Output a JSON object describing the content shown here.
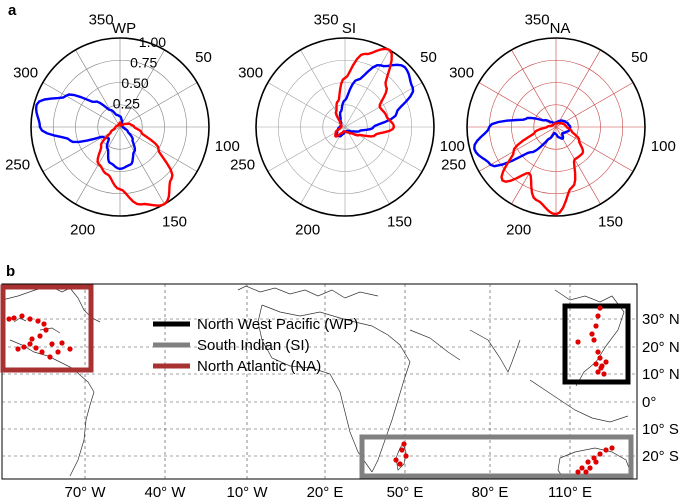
{
  "panels": {
    "a": "a",
    "b": "b"
  },
  "chart_data": [
    {
      "type": "polar",
      "panel": "a",
      "subplots": [
        {
          "title": "WP",
          "ring_color": "#808080",
          "angular_ticks": [
            "50",
            "100",
            "150",
            "200",
            "250",
            "300",
            "350"
          ],
          "radial_ticks": [
            "0.25",
            "0.50",
            "0.75",
            "1.00"
          ],
          "rlim": [
            0,
            1
          ],
          "series": [
            {
              "color": "#0000ff",
              "theta": [
                0,
                15,
                30,
                45,
                60,
                75,
                90,
                105,
                120,
                135,
                150,
                165,
                180,
                195,
                210,
                225,
                240,
                255,
                270,
                285,
                300,
                315,
                330,
                345
              ],
              "r": [
                0.12,
                0.08,
                0.04,
                0.03,
                0.03,
                0.03,
                0.03,
                0.05,
                0.1,
                0.2,
                0.32,
                0.44,
                0.47,
                0.42,
                0.28,
                0.18,
                0.22,
                0.58,
                0.9,
                0.97,
                0.7,
                0.4,
                0.22,
                0.14
              ]
            },
            {
              "color": "#ff0000",
              "theta": [
                0,
                15,
                30,
                45,
                60,
                75,
                90,
                105,
                120,
                135,
                150,
                165,
                180,
                195,
                210,
                225,
                240,
                255,
                270,
                285,
                300,
                315,
                330,
                345
              ],
              "r": [
                0.05,
                0.03,
                0.02,
                0.03,
                0.07,
                0.12,
                0.16,
                0.25,
                0.5,
                0.82,
                1.0,
                0.9,
                0.7,
                0.55,
                0.48,
                0.3,
                0.12,
                0.06,
                0.05,
                0.04,
                0.03,
                0.03,
                0.03,
                0.04
              ]
            }
          ]
        },
        {
          "title": "SI",
          "ring_color": "#a0a0a0",
          "angular_ticks": [
            "50",
            "100",
            "150",
            "200",
            "250",
            "300",
            "350"
          ],
          "radial_ticks": [],
          "rlim": [
            0,
            1
          ],
          "series": [
            {
              "color": "#0000ff",
              "theta": [
                0,
                15,
                30,
                45,
                60,
                75,
                90,
                105,
                120,
                135,
                150,
                165,
                180,
                195,
                210,
                225,
                240,
                255,
                270,
                285,
                300,
                315,
                330,
                345
              ],
              "r": [
                0.3,
                0.55,
                0.8,
                0.95,
                0.88,
                0.6,
                0.32,
                0.17,
                0.1,
                0.06,
                0.05,
                0.05,
                0.05,
                0.08,
                0.12,
                0.13,
                0.1,
                0.08,
                0.06,
                0.05,
                0.05,
                0.06,
                0.1,
                0.18
              ]
            },
            {
              "color": "#ff0000",
              "theta": [
                0,
                15,
                30,
                45,
                60,
                75,
                90,
                105,
                120,
                135,
                150,
                165,
                180,
                195,
                210,
                225,
                240,
                255,
                270,
                285,
                300,
                315,
                330,
                345
              ],
              "r": [
                0.55,
                0.85,
                1.0,
                0.65,
                0.45,
                0.48,
                0.55,
                0.35,
                0.18,
                0.1,
                0.07,
                0.06,
                0.05,
                0.05,
                0.08,
                0.15,
                0.12,
                0.06,
                0.04,
                0.04,
                0.05,
                0.08,
                0.2,
                0.3
              ]
            }
          ]
        },
        {
          "title": "NA",
          "ring_color": "#c84040",
          "angular_ticks": [
            "50",
            "100",
            "150",
            "200",
            "250",
            "300",
            "350"
          ],
          "radial_ticks": [],
          "rlim": [
            0,
            1
          ],
          "series": [
            {
              "color": "#0000ff",
              "theta": [
                0,
                15,
                30,
                45,
                60,
                75,
                90,
                105,
                120,
                135,
                150,
                165,
                180,
                195,
                210,
                225,
                240,
                255,
                270,
                285,
                300,
                315,
                330,
                345
              ],
              "r": [
                0.05,
                0.06,
                0.08,
                0.1,
                0.12,
                0.14,
                0.16,
                0.15,
                0.12,
                0.1,
                0.15,
                0.12,
                0.08,
                0.07,
                0.15,
                0.4,
                0.85,
                0.95,
                0.75,
                0.35,
                0.15,
                0.08,
                0.05,
                0.05
              ]
            },
            {
              "color": "#ff0000",
              "theta": [
                0,
                15,
                30,
                45,
                60,
                75,
                90,
                105,
                120,
                135,
                150,
                165,
                180,
                195,
                210,
                225,
                240,
                255,
                270,
                285,
                300,
                315,
                330,
                345
              ],
              "r": [
                0.04,
                0.04,
                0.05,
                0.06,
                0.08,
                0.1,
                0.12,
                0.18,
                0.3,
                0.42,
                0.42,
                0.7,
                0.98,
                0.85,
                0.6,
                0.85,
                0.55,
                0.25,
                0.1,
                0.05,
                0.04,
                0.04,
                0.04,
                0.04
              ]
            }
          ]
        }
      ]
    },
    {
      "type": "map",
      "panel": "b",
      "lon_ticks": [
        "70° W",
        "40° W",
        "10° W",
        "20° E",
        "50° E",
        "80° E",
        "110° E"
      ],
      "lat_ticks": [
        "30° N",
        "20° N",
        "10° N",
        "0°",
        "10° S",
        "20° S"
      ],
      "legend": [
        {
          "label": "North West Pacific (WP)",
          "color": "#000000"
        },
        {
          "label": "South Indian (SI)",
          "color": "#808080"
        },
        {
          "label": "North Atlantic (NA)",
          "color": "#a83232"
        }
      ],
      "point_color": "#e00000"
    }
  ]
}
